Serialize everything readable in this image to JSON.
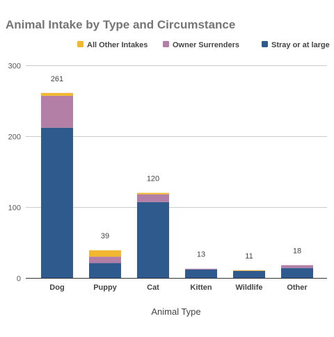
{
  "chart_data": {
    "type": "bar",
    "stacked": true,
    "title": "Animal Intake by Type and Circumstance",
    "xlabel": "Animal Type",
    "ylabel": "",
    "categories": [
      "Dog",
      "Puppy",
      "Cat",
      "Kitten",
      "Wildlife",
      "Other"
    ],
    "series": [
      {
        "name": "Stray or at large",
        "color": "#2e5a8e",
        "values": [
          212,
          21,
          107,
          12,
          10,
          14
        ]
      },
      {
        "name": "Owner Surrenders",
        "color": "#b47fa6",
        "values": [
          45,
          9,
          11,
          1,
          0,
          4
        ]
      },
      {
        "name": "All Other Intakes",
        "color": "#f2b730",
        "values": [
          4,
          9,
          2,
          0,
          1,
          0
        ]
      }
    ],
    "totals": [
      "261",
      "39",
      "120",
      "13",
      "11",
      "18"
    ],
    "ylim": [
      0,
      300
    ],
    "yticks": [
      "0",
      "100",
      "200",
      "300"
    ],
    "legend_order": [
      "All Other Intakes",
      "Owner Surrenders",
      "Stray or at large"
    ],
    "legend_position": "top",
    "grid": true,
    "colors": {
      "title": "#757575",
      "axis_text": "#444444",
      "tick_text": "#555555",
      "grid": "#cccccc",
      "baseline": "#333333"
    }
  }
}
